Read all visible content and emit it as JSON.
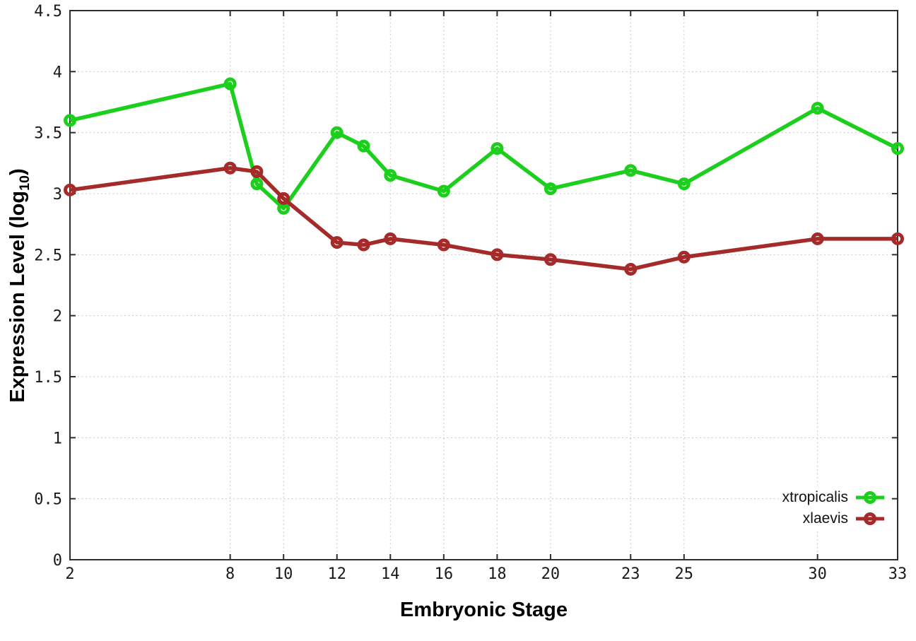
{
  "chart_data": {
    "type": "line",
    "title": "",
    "xlabel": "Embryonic Stage",
    "ylabel": "Expression Level (log10)",
    "ylabel_parts": {
      "main": "Expression Level (log",
      "sub": "10",
      "end": ")"
    },
    "xlim": [
      2,
      33
    ],
    "ylim": [
      0,
      4.5
    ],
    "x_ticks": [
      2,
      8,
      10,
      12,
      14,
      16,
      18,
      20,
      23,
      25,
      30,
      33
    ],
    "y_ticks": [
      0,
      0.5,
      1,
      1.5,
      2,
      2.5,
      3,
      3.5,
      4,
      4.5
    ],
    "grid": true,
    "legend_position": "bottom-right",
    "x": [
      2,
      8,
      9,
      10,
      12,
      13,
      14,
      16,
      18,
      20,
      23,
      25,
      30,
      33
    ],
    "series": [
      {
        "name": "xtropicalis",
        "color": "#1ccf1c",
        "values": [
          3.6,
          3.9,
          3.08,
          2.88,
          3.5,
          3.39,
          3.15,
          3.02,
          3.37,
          3.04,
          3.19,
          3.08,
          3.7,
          3.37
        ]
      },
      {
        "name": "xlaevis",
        "color": "#a52a2a",
        "values": [
          3.03,
          3.21,
          3.18,
          2.96,
          2.6,
          2.58,
          2.63,
          2.58,
          2.5,
          2.46,
          2.38,
          2.48,
          2.63,
          2.63
        ]
      }
    ]
  },
  "colors": {
    "background": "#ffffff",
    "axis": "#2e2e2e",
    "grid": "#c8c8c8",
    "tick_text": "#1a1a1a",
    "series_green": "#1ccf1c",
    "series_red": "#a52a2a"
  }
}
